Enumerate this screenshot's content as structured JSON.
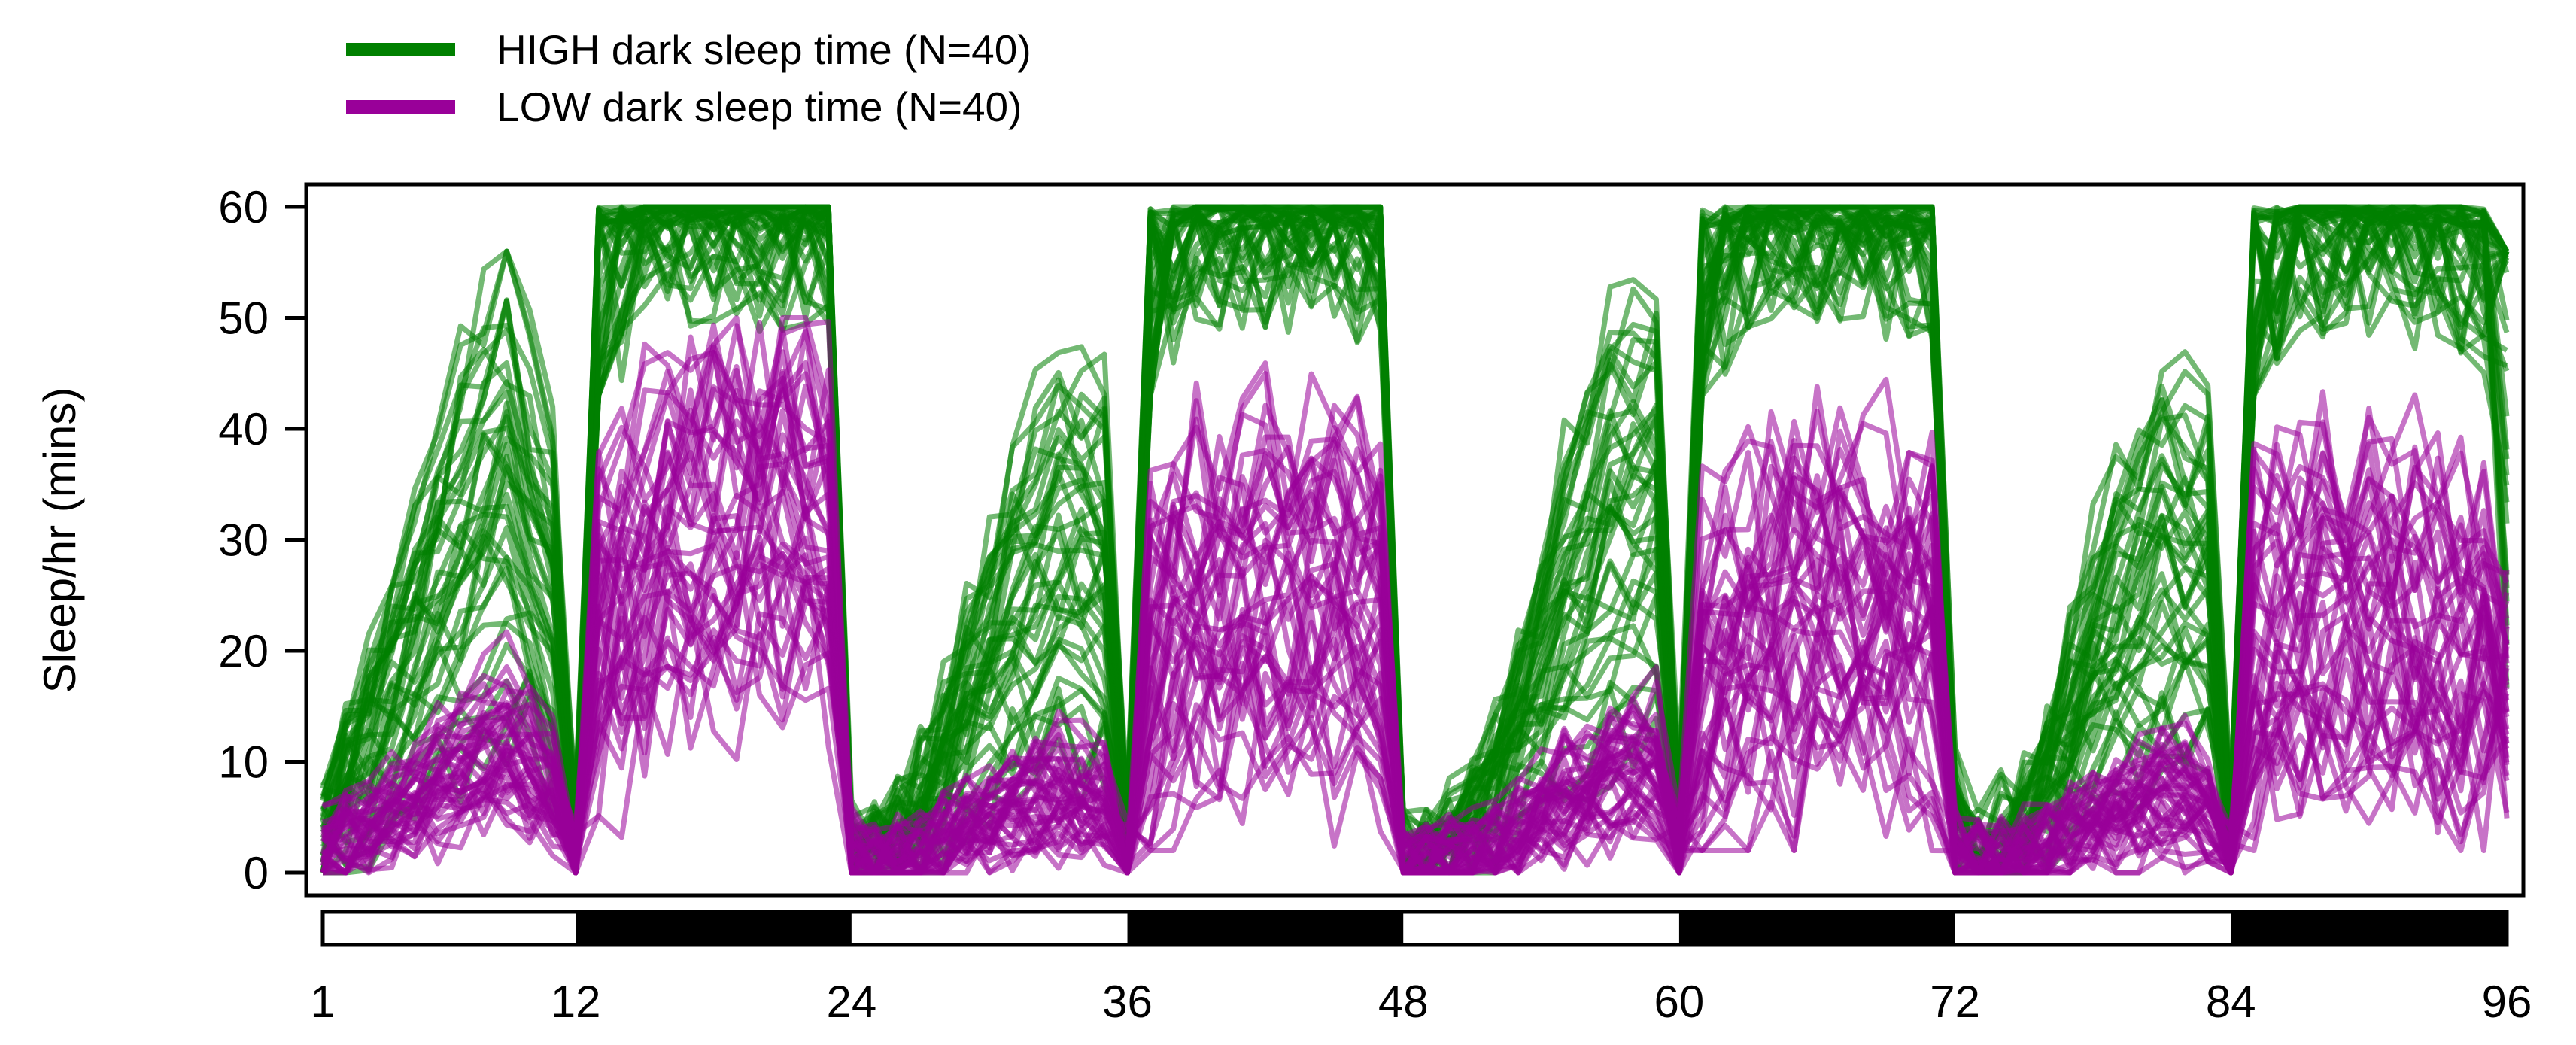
{
  "chart_data": {
    "type": "line",
    "title": "",
    "xlabel": "",
    "ylabel": "Sleep/hr (mins)",
    "xlim": [
      1,
      96
    ],
    "ylim": [
      0,
      60
    ],
    "x_ticks": [
      1,
      12,
      24,
      36,
      48,
      60,
      72,
      84,
      96
    ],
    "y_ticks": [
      0,
      10,
      20,
      30,
      40,
      50,
      60
    ],
    "grid": false,
    "legend_position": "top-left (above plot)",
    "light_dark_bar": {
      "light_periods": [
        [
          1,
          12
        ],
        [
          24,
          36
        ],
        [
          48,
          60
        ],
        [
          72,
          84
        ]
      ],
      "dark_periods": [
        [
          12,
          24
        ],
        [
          36,
          48
        ],
        [
          60,
          72
        ],
        [
          84,
          96
        ]
      ],
      "light_color": "#ffffff",
      "dark_color": "#000000"
    },
    "groups": [
      {
        "label": "HIGH dark sleep time (N=40)",
        "color": "#008000",
        "n_lines": 40,
        "mean_profile": {
          "x": [
            1,
            3,
            5,
            7,
            9,
            11,
            12,
            13,
            15,
            18,
            21,
            23,
            24,
            25,
            27,
            29,
            31,
            33,
            35,
            36,
            37,
            39,
            42,
            45,
            47,
            48,
            49,
            51,
            53,
            55,
            57,
            59,
            60,
            61,
            63,
            66,
            69,
            71,
            72,
            73,
            75,
            77,
            79,
            81,
            83,
            84,
            85,
            87,
            90,
            93,
            96
          ],
          "y": [
            3,
            12,
            22,
            30,
            36,
            25,
            2,
            48,
            57,
            58,
            57,
            56,
            2,
            1,
            6,
            15,
            24,
            30,
            28,
            2,
            48,
            57,
            57,
            56,
            55,
            1,
            1,
            5,
            14,
            24,
            32,
            34,
            4,
            48,
            57,
            57,
            56,
            55,
            5,
            1,
            5,
            14,
            23,
            29,
            27,
            2,
            47,
            56,
            56,
            55,
            53
          ]
        },
        "range": {
          "light_min": 0,
          "light_max": 56,
          "dark_min": 43,
          "dark_max": 60
        }
      },
      {
        "label": "LOW dark sleep time (N=40)",
        "color": "#990099",
        "n_lines": 40,
        "mean_profile": {
          "x": [
            1,
            3,
            5,
            7,
            9,
            11,
            12,
            13,
            15,
            18,
            21,
            23,
            24,
            25,
            27,
            29,
            31,
            33,
            35,
            36,
            37,
            39,
            42,
            45,
            47,
            48,
            49,
            51,
            53,
            55,
            57,
            59,
            60,
            61,
            63,
            66,
            69,
            71,
            72,
            73,
            75,
            77,
            79,
            81,
            83,
            84,
            85,
            87,
            90,
            93,
            96
          ],
          "y": [
            2,
            4,
            7,
            10,
            12,
            8,
            1,
            22,
            28,
            31,
            32,
            30,
            2,
            1,
            2,
            4,
            6,
            8,
            6,
            1,
            19,
            23,
            25,
            24,
            22,
            1,
            1,
            2,
            4,
            7,
            9,
            10,
            2,
            17,
            21,
            23,
            23,
            21,
            2,
            1,
            2,
            4,
            6,
            8,
            7,
            1,
            18,
            22,
            23,
            21,
            18
          ]
        },
        "range": {
          "light_min": 0,
          "light_max": 46,
          "dark_min": 2,
          "dark_max": 50
        }
      }
    ]
  }
}
